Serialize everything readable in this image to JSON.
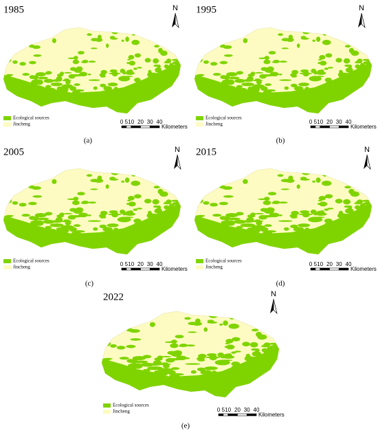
{
  "panels": [
    {
      "year": "1985",
      "label": "(a)"
    },
    {
      "year": "1995",
      "label": "(b)"
    },
    {
      "year": "2005",
      "label": "(c)"
    },
    {
      "year": "2015",
      "label": "(d)"
    },
    {
      "year": "2022",
      "label": "(e)"
    }
  ],
  "legend": {
    "items": [
      "Ecological sources",
      "Jincheng"
    ]
  },
  "north": "N",
  "scale_bar": {
    "ticks": [
      0,
      5,
      10,
      20,
      30,
      40
    ],
    "unit": "Kilometers"
  }
}
